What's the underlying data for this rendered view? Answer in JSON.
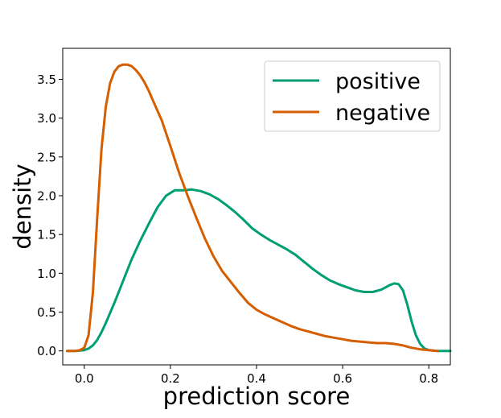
{
  "chart_data": {
    "type": "line",
    "xlabel": "prediction score",
    "ylabel": "density",
    "xlim": [
      -0.05,
      0.85
    ],
    "ylim": [
      -0.18,
      3.9
    ],
    "xticks": [
      0.0,
      0.2,
      0.4,
      0.6,
      0.8
    ],
    "xtick_labels": [
      "0.0",
      "0.2",
      "0.4",
      "0.6",
      "0.8"
    ],
    "yticks": [
      0.0,
      0.5,
      1.0,
      1.5,
      2.0,
      2.5,
      3.0,
      3.5
    ],
    "ytick_labels": [
      "0.0",
      "0.5",
      "1.0",
      "1.5",
      "2.0",
      "2.5",
      "3.0",
      "3.5"
    ],
    "grid": false,
    "legend_position": "top-right",
    "series": [
      {
        "name": "positive",
        "color": "#009e73",
        "x": [
          -0.04,
          -0.02,
          0.0,
          0.01,
          0.02,
          0.03,
          0.04,
          0.05,
          0.07,
          0.09,
          0.11,
          0.13,
          0.15,
          0.17,
          0.19,
          0.21,
          0.23,
          0.25,
          0.27,
          0.29,
          0.31,
          0.33,
          0.35,
          0.37,
          0.39,
          0.41,
          0.43,
          0.45,
          0.47,
          0.49,
          0.51,
          0.53,
          0.55,
          0.57,
          0.59,
          0.61,
          0.63,
          0.65,
          0.67,
          0.69,
          0.71,
          0.72,
          0.73,
          0.74,
          0.75,
          0.76,
          0.77,
          0.78,
          0.79,
          0.8,
          0.82,
          0.85
        ],
        "y": [
          0.0,
          0.0,
          0.01,
          0.03,
          0.07,
          0.14,
          0.24,
          0.36,
          0.62,
          0.9,
          1.18,
          1.42,
          1.64,
          1.85,
          2.0,
          2.07,
          2.07,
          2.08,
          2.06,
          2.02,
          1.96,
          1.88,
          1.79,
          1.69,
          1.58,
          1.5,
          1.43,
          1.37,
          1.31,
          1.24,
          1.15,
          1.06,
          0.98,
          0.91,
          0.86,
          0.82,
          0.78,
          0.76,
          0.76,
          0.79,
          0.85,
          0.87,
          0.86,
          0.78,
          0.6,
          0.38,
          0.2,
          0.09,
          0.03,
          0.01,
          0.0,
          0.0
        ]
      },
      {
        "name": "negative",
        "color": "#d55e00",
        "x": [
          -0.04,
          -0.02,
          -0.01,
          0.0,
          0.01,
          0.02,
          0.03,
          0.04,
          0.05,
          0.06,
          0.07,
          0.08,
          0.09,
          0.1,
          0.11,
          0.12,
          0.13,
          0.14,
          0.15,
          0.16,
          0.18,
          0.2,
          0.22,
          0.24,
          0.26,
          0.28,
          0.3,
          0.32,
          0.34,
          0.36,
          0.38,
          0.4,
          0.42,
          0.44,
          0.46,
          0.48,
          0.5,
          0.52,
          0.54,
          0.56,
          0.58,
          0.6,
          0.62,
          0.64,
          0.66,
          0.68,
          0.7,
          0.72,
          0.74,
          0.76,
          0.78,
          0.8,
          0.82
        ],
        "y": [
          0.0,
          0.0,
          0.01,
          0.04,
          0.2,
          0.75,
          1.7,
          2.6,
          3.15,
          3.45,
          3.6,
          3.67,
          3.69,
          3.69,
          3.67,
          3.62,
          3.55,
          3.46,
          3.35,
          3.22,
          2.97,
          2.64,
          2.3,
          2.0,
          1.72,
          1.45,
          1.22,
          1.03,
          0.89,
          0.75,
          0.62,
          0.53,
          0.47,
          0.42,
          0.37,
          0.32,
          0.28,
          0.25,
          0.22,
          0.19,
          0.17,
          0.15,
          0.13,
          0.12,
          0.11,
          0.1,
          0.1,
          0.09,
          0.07,
          0.04,
          0.02,
          0.01,
          0.0
        ]
      }
    ]
  }
}
